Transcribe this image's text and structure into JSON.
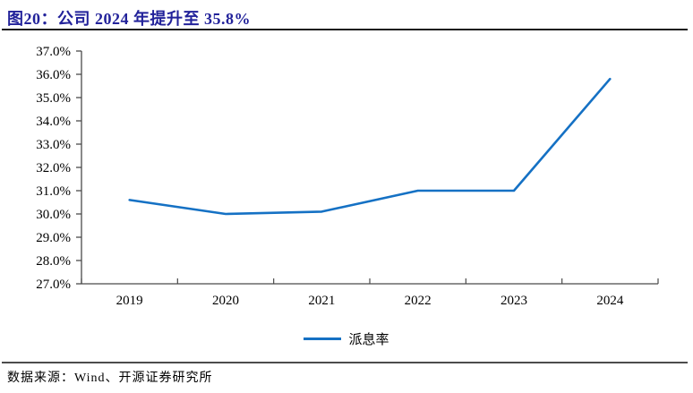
{
  "header": {
    "title": "图20：公司 2024 年提升至 35.8%"
  },
  "chart_data": {
    "type": "line",
    "title": "图20：公司 2024 年提升至 35.8%",
    "categories": [
      "2019",
      "2020",
      "2021",
      "2022",
      "2023",
      "2024"
    ],
    "series": [
      {
        "name": "派息率",
        "values": [
          30.6,
          30.0,
          30.1,
          31.0,
          31.0,
          35.8
        ],
        "color": "#1571C4"
      }
    ],
    "ylim": [
      27.0,
      37.0
    ],
    "ytick_step": 1.0,
    "ytick_labels": [
      "37.0%",
      "36.0%",
      "35.0%",
      "34.0%",
      "33.0%",
      "32.0%",
      "31.0%",
      "30.0%",
      "29.0%",
      "28.0%",
      "27.0%"
    ],
    "xlabel": "",
    "ylabel": "",
    "grid": false,
    "legend_position": "bottom"
  },
  "footer": {
    "source": "数据来源：Wind、开源证券研究所"
  },
  "colors": {
    "title": "#22229A",
    "line": "#1571C4",
    "axis": "#4a4a4a",
    "tick_text": "#000000"
  }
}
